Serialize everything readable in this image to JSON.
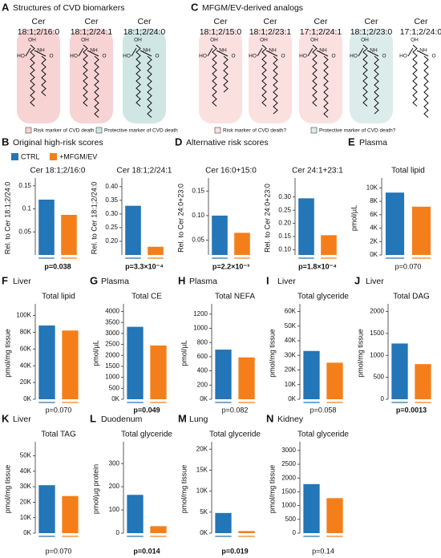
{
  "structures": [
    {
      "letter": "A",
      "title": "Structures of CVD biomarkers",
      "molecules": [
        {
          "name": "Cer",
          "sub": "18:1;2/16:0",
          "color": "#f8d3d3",
          "chain": 16
        },
        {
          "name": "Cer",
          "sub": "18:1;2/24:1",
          "color": "#f8d3d3",
          "chain": 24
        },
        {
          "name": "Cer",
          "sub": "18:1;2/24:0",
          "color": "#cfe6e4",
          "chain": 24
        }
      ],
      "legend": [
        {
          "label": "Risk marker of CVD death",
          "color": "#f8d3d3"
        },
        {
          "label": "Protective marker of CVD death",
          "color": "#cfe6e4"
        }
      ]
    },
    {
      "letter": "C",
      "title": "MFGM/EV-derived analogs",
      "molecules": [
        {
          "name": "Cer",
          "sub": "18:1;2/15:0",
          "color": "#fbe0e0",
          "chain": 15
        },
        {
          "name": "Cer",
          "sub": "18:1;2/23:1",
          "color": "#fbe0e0",
          "chain": 23
        },
        {
          "name": "Cer",
          "sub": "17:1;2/24:1",
          "color": "#fbe0e0",
          "chain": 24
        },
        {
          "name": "Cer",
          "sub": "18:1;2/23:0",
          "color": "#dcecea",
          "chain": 23
        },
        {
          "name": "Cer",
          "sub": "17:1;2/24:0",
          "color": "#ffffff",
          "chain": 24
        }
      ],
      "legend": [
        {
          "label": "Risk marker of CVD death?",
          "color": "#fbe0e0"
        },
        {
          "label": "Protective marker of CVD death?",
          "color": "#dcecea"
        }
      ]
    }
  ],
  "atoms": {
    "oh": "OH",
    "ho": "HO",
    "nh": "NH",
    "o": "O"
  },
  "chart_legend": [
    {
      "name": "CTRL",
      "color": "#2376b7"
    },
    {
      "name": "+MFGM/EV",
      "color": "#f47f1a"
    }
  ],
  "chart_data": [
    {
      "type": "bar",
      "letter": "B",
      "panel_title": "Original high-risk scores",
      "title": "Cer 18:1;2/16:0",
      "y_label": "Rel. to Cer 18:1;2/24:0",
      "values": [
        0.12,
        0.087
      ],
      "ylim": [
        0,
        0.16
      ],
      "yticks": [
        0.05,
        0.1,
        0.15
      ],
      "p_label": "p=0.038",
      "p_bold": true
    },
    {
      "type": "bar",
      "title": "Cer 18:1;2/24:1",
      "y_label": "Rel. to Cer 18:1;2/24:0",
      "values": [
        0.33,
        0.18
      ],
      "ylim": [
        0.15,
        0.42
      ],
      "yticks": [
        {
          "value": 0.2,
          "label": "0.20"
        },
        0.25,
        {
          "value": 0.3,
          "label": "0.30"
        },
        0.35,
        {
          "value": 0.4,
          "label": "0.40"
        }
      ],
      "p_label": "p=3.3×10⁻⁴",
      "p_bold": true
    },
    {
      "type": "bar",
      "letter": "D",
      "panel_title": "Alternative risk scores",
      "title": "Cer 16:0+15:0",
      "y_label": "Rel. to Cer 24:0+23:0",
      "values": [
        0.1,
        0.065
      ],
      "ylim": [
        0.02,
        0.17
      ],
      "yticks": [
        0.05,
        {
          "value": 0.1,
          "label": "0.10"
        },
        0.15
      ],
      "p_label": "p=2.2×10⁻³",
      "p_bold": true
    },
    {
      "type": "bar",
      "title": "Cer 24:1+23:1",
      "y_label": "Rel. to Cer 24:0+23:0",
      "values": [
        0.295,
        0.155
      ],
      "ylim": [
        0.08,
        0.36
      ],
      "yticks": [
        {
          "value": 0.1,
          "label": "0.10"
        },
        0.15,
        {
          "value": 0.2,
          "label": "0.20"
        },
        0.25,
        {
          "value": 0.3,
          "label": "0.30"
        }
      ],
      "p_label": "p=1.8×10⁻⁴",
      "p_bold": true
    },
    {
      "type": "bar",
      "letter": "E",
      "tissue": "Plasma",
      "title": "Total lipid",
      "y_label": "pmol/µL",
      "values": [
        9300,
        7200
      ],
      "ylim": [
        0,
        11000
      ],
      "yticks": [
        {
          "value": 0,
          "label": "0K"
        },
        {
          "value": 2000,
          "label": "2K"
        },
        {
          "value": 4000,
          "label": "4K"
        },
        {
          "value": 6000,
          "label": "6K"
        },
        {
          "value": 8000,
          "label": "8K"
        },
        {
          "value": 10000,
          "label": "10K"
        }
      ],
      "p_label": "p=0.070",
      "p_bold": false
    },
    {
      "type": "bar",
      "letter": "F",
      "tissue": "Liver",
      "title": "Total lipid",
      "y_label": "pmol/mg tissue",
      "values": [
        88000,
        82000
      ],
      "ylim": [
        0,
        110000
      ],
      "yticks": [
        {
          "value": 0,
          "label": "0K"
        },
        {
          "value": 20000,
          "label": "20K"
        },
        {
          "value": 40000,
          "label": "40K"
        },
        {
          "value": 60000,
          "label": "60K"
        },
        {
          "value": 80000,
          "label": "80K"
        },
        {
          "value": 100000,
          "label": "100K"
        }
      ],
      "p_label": "p=0.070",
      "p_bold": false
    },
    {
      "type": "bar",
      "letter": "G",
      "tissue": "Plasma",
      "title": "Total CE",
      "y_label": "pmol/µL",
      "values": [
        3300,
        2450
      ],
      "ylim": [
        0,
        4200
      ],
      "yticks": [
        {
          "value": 0,
          "label": "0K"
        },
        500,
        1000,
        1500,
        2000,
        2500,
        3000,
        3500,
        4000
      ],
      "p_label": "p=0.049",
      "p_bold": true
    },
    {
      "type": "bar",
      "letter": "H",
      "tissue": "Plasma",
      "title": "Total NEFA",
      "y_label": "pmol/µL",
      "values": [
        700,
        590
      ],
      "ylim": [
        0,
        1300
      ],
      "yticks": [
        {
          "value": 0,
          "label": "0K"
        },
        200,
        400,
        600,
        800,
        1000,
        1200
      ],
      "p_label": "p=0.082",
      "p_bold": false
    },
    {
      "type": "bar",
      "letter": "I",
      "tissue": "Liver",
      "title": "Total glyceride",
      "y_label": "pmol/mg tissue",
      "values": [
        33000,
        25000
      ],
      "ylim": [
        0,
        63000
      ],
      "yticks": [
        {
          "value": 0,
          "label": "0K"
        },
        {
          "value": 10000,
          "label": "10K"
        },
        {
          "value": 20000,
          "label": "20K"
        },
        {
          "value": 30000,
          "label": "30K"
        },
        {
          "value": 40000,
          "label": "40K"
        },
        {
          "value": 50000,
          "label": "50K"
        },
        {
          "value": 60000,
          "label": "60K"
        }
      ],
      "p_label": "p=0.058",
      "p_bold": false
    },
    {
      "type": "bar",
      "letter": "J",
      "tissue": "Liver",
      "title": "Total DAG",
      "y_label": "pmol/mg tissue",
      "values": [
        1270,
        800
      ],
      "ylim": [
        0,
        2100
      ],
      "yticks": [
        0,
        500,
        1000,
        1500,
        2000
      ],
      "p_label": "p=0.0013",
      "p_bold": true
    },
    {
      "type": "bar",
      "letter": "K",
      "tissue": "Liver",
      "title": "Total TAG",
      "y_label": "pmol/mg tissue",
      "values": [
        31000,
        24000
      ],
      "ylim": [
        0,
        57000
      ],
      "yticks": [
        {
          "value": 0,
          "label": "0K"
        },
        {
          "value": 10000,
          "label": "10K"
        },
        {
          "value": 20000,
          "label": "20K"
        },
        {
          "value": 30000,
          "label": "30K"
        },
        {
          "value": 40000,
          "label": "40K"
        },
        {
          "value": 50000,
          "label": "50K"
        }
      ],
      "p_label": "p=0.070",
      "p_bold": false
    },
    {
      "type": "bar",
      "letter": "L",
      "tissue": "Duodenum",
      "title": "Total glyceride",
      "y_label": "pmol/µg protein",
      "values": [
        165,
        30
      ],
      "ylim": [
        0,
        380
      ],
      "yticks": [
        0,
        100,
        200,
        300
      ],
      "p_label": "p=0.014",
      "p_bold": true
    },
    {
      "type": "bar",
      "letter": "M",
      "tissue": "Lung",
      "title": "Total glyceride",
      "y_label": "pmol/mg tissue",
      "values": [
        4800,
        500
      ],
      "ylim": [
        0,
        21000
      ],
      "yticks": [
        {
          "value": 0,
          "label": "0K"
        },
        {
          "value": 5000,
          "label": "5K"
        },
        {
          "value": 10000,
          "label": "10K"
        },
        {
          "value": 15000,
          "label": "15K"
        },
        {
          "value": 20000,
          "label": "20K"
        }
      ],
      "p_label": "p=0.019",
      "p_bold": true
    },
    {
      "type": "bar",
      "letter": "N",
      "tissue": "Kidney",
      "title": "Total glyceride",
      "y_label": "pmol/mg tissue",
      "values": [
        1780,
        1270
      ],
      "ylim": [
        0,
        3200
      ],
      "yticks": [
        0,
        500,
        1000,
        1500,
        2000,
        2500,
        3000
      ],
      "p_label": "p=0.14",
      "p_bold": false
    }
  ]
}
